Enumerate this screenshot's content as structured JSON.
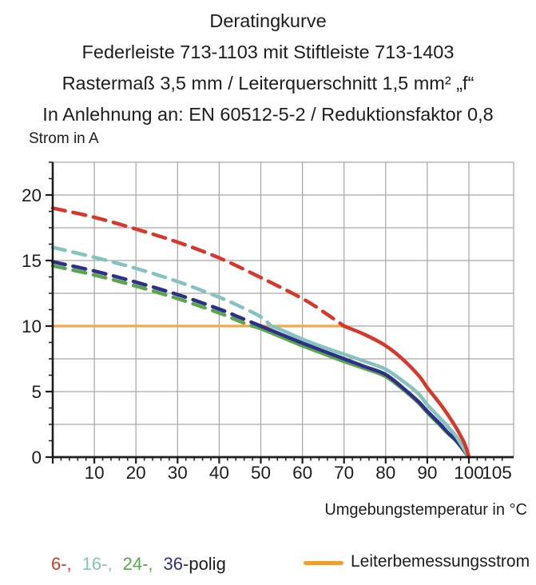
{
  "title": {
    "line1": "Deratingkurve",
    "line2": "Federleiste 713-1103 mit Stiftleiste 713-1403",
    "line3": "Rastermaß 3,5 mm / Leiterquerschnitt 1,5 mm² „f“",
    "line4": "In Anlehnung an: EN 60512-5-2 / Reduktionsfaktor 0,8"
  },
  "axes": {
    "y_axis_label": "Strom in A",
    "x_axis_label": "Umgebungstemperatur in °C"
  },
  "legend": {
    "pole_items": [
      {
        "label": "6-,",
        "color": "#d6392b"
      },
      {
        "label": "16-,",
        "color": "#84c3c0"
      },
      {
        "label": "24-,",
        "color": "#5aa74b"
      },
      {
        "label": "36-",
        "color": "#2e3088"
      },
      {
        "label": "polig",
        "color": "#1d1d1b"
      }
    ],
    "conductor_label": "Leiterbemessungsstrom",
    "conductor_color": "#ee9d33"
  },
  "colors": {
    "text": "#1d1d1b",
    "grid": "#a6a6a5",
    "axis": "#1d1d1b",
    "red": "#d6392b",
    "cyan": "#84c3c0",
    "green": "#5aa74b",
    "blue": "#2e3088",
    "orange_line": "#f2a94d"
  },
  "chart_data": {
    "type": "line",
    "title": "Deratingkurve",
    "xlabel": "Umgebungstemperatur in °C",
    "ylabel": "Strom in A",
    "xlim": [
      0,
      110
    ],
    "ylim": [
      0,
      22.5
    ],
    "grid": "on",
    "legend_position": "bottom",
    "x_major_ticks": [
      10,
      20,
      30,
      40,
      50,
      60,
      70,
      80,
      90,
      100,
      105
    ],
    "x_minor_tick_step": 2,
    "y_major_ticks": [
      0,
      5,
      10,
      15,
      20
    ],
    "y_minor_tick_step": 1.25,
    "x_gridlines": [
      10,
      20,
      30,
      40,
      50,
      60,
      70,
      80,
      90,
      100
    ],
    "y_gridlines": [
      2.5,
      5,
      7.5,
      10,
      12.5,
      15,
      17.5,
      20,
      22.5
    ],
    "series": [
      {
        "name": "Leiterbemessungsstrom",
        "color": "#f2a94d",
        "line_style": "solid",
        "width": 3.2,
        "points": [
          [
            0,
            10
          ],
          [
            70.5,
            10
          ]
        ]
      },
      {
        "name": "24-polig",
        "color": "#5aa74b",
        "line_style": "dashed_then_solid",
        "solid_from_x": 48,
        "width": 4.5,
        "points": [
          [
            0,
            14.6
          ],
          [
            10,
            13.9
          ],
          [
            20,
            13.05
          ],
          [
            30,
            12.1
          ],
          [
            40,
            11.0
          ],
          [
            45,
            10.35
          ],
          [
            48,
            10
          ],
          [
            50,
            9.8
          ],
          [
            55,
            9.15
          ],
          [
            60,
            8.5
          ],
          [
            65,
            7.9
          ],
          [
            70,
            7.3
          ],
          [
            75,
            6.75
          ],
          [
            80,
            6.15
          ],
          [
            85,
            4.95
          ],
          [
            88,
            4.1
          ],
          [
            90,
            3.4
          ],
          [
            93,
            2.45
          ],
          [
            95,
            1.8
          ],
          [
            97,
            1.2
          ],
          [
            100,
            0
          ]
        ]
      },
      {
        "name": "36-polig",
        "color": "#2e3088",
        "line_style": "dashed_then_solid",
        "solid_from_x": 50,
        "width": 4.5,
        "points": [
          [
            0,
            14.9
          ],
          [
            10,
            14.2
          ],
          [
            20,
            13.35
          ],
          [
            30,
            12.4
          ],
          [
            40,
            11.3
          ],
          [
            45,
            10.65
          ],
          [
            50,
            10
          ],
          [
            55,
            9.35
          ],
          [
            60,
            8.7
          ],
          [
            65,
            8.1
          ],
          [
            70,
            7.5
          ],
          [
            75,
            6.9
          ],
          [
            80,
            6.3
          ],
          [
            85,
            5.05
          ],
          [
            88,
            4.2
          ],
          [
            90,
            3.5
          ],
          [
            93,
            2.55
          ],
          [
            95,
            1.85
          ],
          [
            97,
            1.25
          ],
          [
            100,
            0
          ]
        ]
      },
      {
        "name": "16-polig",
        "color": "#84c3c0",
        "line_style": "dashed_then_solid",
        "solid_from_x": 52.5,
        "width": 4.5,
        "points": [
          [
            0,
            16
          ],
          [
            10,
            15.25
          ],
          [
            20,
            14.4
          ],
          [
            30,
            13.4
          ],
          [
            40,
            12.2
          ],
          [
            45,
            11.5
          ],
          [
            50,
            10.7
          ],
          [
            52.5,
            10
          ],
          [
            55,
            9.7
          ],
          [
            60,
            9.0
          ],
          [
            65,
            8.4
          ],
          [
            70,
            7.85
          ],
          [
            75,
            7.3
          ],
          [
            80,
            6.7
          ],
          [
            85,
            5.6
          ],
          [
            88,
            4.8
          ],
          [
            90,
            4.0
          ],
          [
            93,
            3.0
          ],
          [
            95,
            2.3
          ],
          [
            97,
            1.55
          ],
          [
            100,
            0
          ]
        ]
      },
      {
        "name": "6-polig",
        "color": "#d6392b",
        "line_style": "dashed_then_solid",
        "solid_from_x": 70,
        "width": 4.5,
        "points": [
          [
            0,
            19
          ],
          [
            10,
            18.3
          ],
          [
            20,
            17.4
          ],
          [
            30,
            16.4
          ],
          [
            40,
            15.2
          ],
          [
            50,
            13.7
          ],
          [
            60,
            12.1
          ],
          [
            65,
            11.1
          ],
          [
            70,
            10
          ],
          [
            75,
            9.35
          ],
          [
            80,
            8.5
          ],
          [
            84,
            7.5
          ],
          [
            88,
            6.2
          ],
          [
            90,
            5.3
          ],
          [
            93,
            4.1
          ],
          [
            95,
            3.2
          ],
          [
            97,
            2.2
          ],
          [
            99,
            1.0
          ],
          [
            100,
            0
          ]
        ]
      }
    ]
  }
}
